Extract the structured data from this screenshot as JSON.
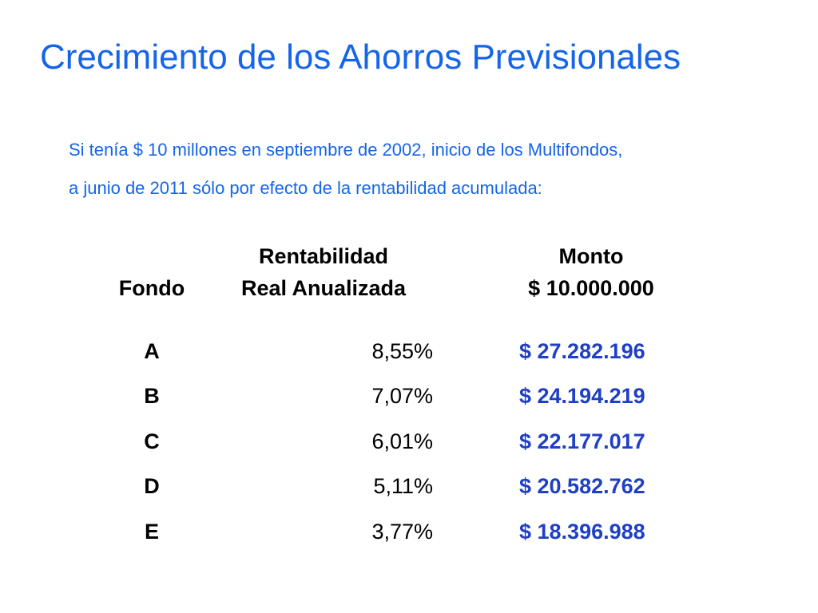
{
  "title": "Crecimiento de los Ahorros Previsionales",
  "subtitle": {
    "line1": "Si tenía $ 10 millones en septiembre de 2002, inicio de los Multifondos,",
    "line2": "a junio de 2011 sólo por efecto de la rentabilidad acumulada:"
  },
  "table": {
    "headers": {
      "fondo": "Fondo",
      "rent_line1": "Rentabilidad",
      "rent_line2": "Real Anualizada",
      "monto_line1": "Monto",
      "monto_line2": "$ 10.000.000"
    },
    "rows": [
      {
        "fondo": "A",
        "rentabilidad": "8,55%",
        "monto": "$ 27.282.196"
      },
      {
        "fondo": "B",
        "rentabilidad": "7,07%",
        "monto": "$ 24.194.219"
      },
      {
        "fondo": "C",
        "rentabilidad": "6,01%",
        "monto": "$ 22.177.017"
      },
      {
        "fondo": "D",
        "rentabilidad": "5,11%",
        "monto": "$ 20.582.762"
      },
      {
        "fondo": "E",
        "rentabilidad": "3,77%",
        "monto": "$ 18.396.988"
      }
    ]
  },
  "colors": {
    "title": "#1565e8",
    "monto_values": "#1f3fc4",
    "text": "#000000"
  }
}
